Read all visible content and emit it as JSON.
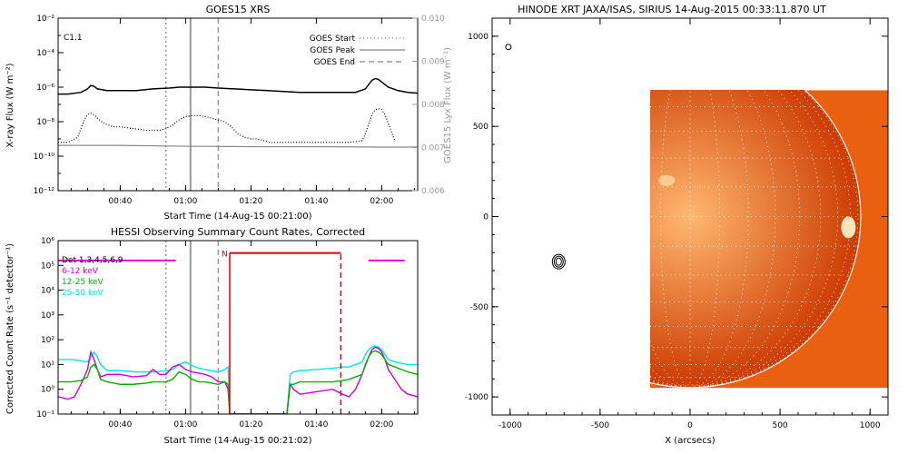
{
  "colors": {
    "goes_long": "#000000",
    "goes_short": "#000000",
    "goes_lya": "#888888",
    "goes_lines": "#999999",
    "hessi_det": "#e000e0",
    "hessi_6_12": "#d000d0",
    "hessi_12_25": "#00b000",
    "hessi_25_50": "#00e6e6",
    "hessi_flags": "#dd0000",
    "sun_core": "#ffb870",
    "sun_edge": "#cc3a00",
    "sun_bg": "#e86010"
  },
  "chart_data": [
    {
      "type": "line",
      "title": "GOES15 XRS",
      "xlabel": "Start Time (14-Aug-15 00:21:00)",
      "ylabel": "X-ray Flux (W m⁻²)",
      "ylabel_right": "GOES15 Lyx Flux (W m⁻²)",
      "x_tick_labels": [
        "00:40",
        "01:00",
        "01:20",
        "01:40",
        "02:00"
      ],
      "x_tick_minutes": [
        40,
        60,
        80,
        100,
        120
      ],
      "xlim_minutes": [
        21,
        131
      ],
      "y_tick_labels": [
        "10⁻¹²",
        "10⁻¹⁰",
        "10⁻⁸",
        "10⁻⁶",
        "10⁻⁴",
        "10⁻²"
      ],
      "y_tick_exponents": [
        -12,
        -10,
        -8,
        -6,
        -4,
        -2
      ],
      "ylim_log": [
        -12,
        -2
      ],
      "y2_tick_labels": [
        "0.006",
        "0.007",
        "0.008",
        "0.009",
        "0.010"
      ],
      "y2lim": [
        0.006,
        0.01
      ],
      "class_label": "C1.1",
      "legend": [
        {
          "label": "GOES Start",
          "style": "dotted"
        },
        {
          "label": "GOES Peak",
          "style": "solid"
        },
        {
          "label": "GOES End",
          "style": "dashed"
        }
      ],
      "goes_start_min": 54,
      "goes_peak_min": 61.5,
      "goes_end_min": 70,
      "series": [
        {
          "style": "long",
          "x": [
            21,
            24,
            28,
            30,
            31,
            32,
            33,
            36,
            40,
            45,
            50,
            55,
            58,
            60,
            62,
            64,
            66,
            70,
            75,
            80,
            85,
            90,
            95,
            100,
            105,
            110,
            112,
            115,
            117,
            118,
            119,
            120,
            122,
            125,
            128,
            131
          ],
          "y": [
            -6.4,
            -6.4,
            -6.3,
            -6.1,
            -5.9,
            -5.95,
            -6.1,
            -6.2,
            -6.2,
            -6.2,
            -6.1,
            -6.05,
            -6.0,
            -6.0,
            -6.0,
            -6.0,
            -6.0,
            -6.05,
            -6.1,
            -6.15,
            -6.2,
            -6.25,
            -6.3,
            -6.3,
            -6.3,
            -6.3,
            -6.3,
            -6.1,
            -5.6,
            -5.5,
            -5.55,
            -5.7,
            -6.0,
            -6.2,
            -6.3,
            -6.35
          ]
        },
        {
          "style": "short",
          "x": [
            21,
            24,
            27,
            29,
            30,
            31,
            32,
            33,
            35,
            38,
            40,
            44,
            48,
            50,
            52,
            54,
            56,
            58,
            60,
            62,
            64,
            66,
            68,
            70,
            72,
            74,
            76,
            78,
            80,
            82,
            84,
            86,
            88,
            110,
            114,
            115,
            117,
            118,
            119,
            120,
            121,
            122,
            123,
            124
          ],
          "y": [
            -9.2,
            -9.2,
            -8.9,
            -7.9,
            -7.6,
            -7.5,
            -7.6,
            -7.8,
            -8.1,
            -8.3,
            -8.3,
            -8.4,
            -8.5,
            -8.5,
            -8.5,
            -8.4,
            -8.2,
            -7.9,
            -7.7,
            -7.65,
            -7.65,
            -7.7,
            -7.8,
            -7.9,
            -8.0,
            -8.3,
            -8.7,
            -8.9,
            -9.0,
            -9.0,
            -9.1,
            -9.2,
            -9.2,
            -9.2,
            -9.1,
            -8.7,
            -7.6,
            -7.3,
            -7.25,
            -7.3,
            -7.6,
            -8.1,
            -8.6,
            -9.1
          ]
        },
        {
          "style": "lya",
          "x": [
            21,
            40,
            60,
            80,
            100,
            120,
            131
          ],
          "y": [
            0.00705,
            0.00705,
            0.00703,
            0.00702,
            0.00702,
            0.00701,
            0.00701
          ]
        }
      ]
    },
    {
      "type": "line",
      "title": "HESSI Observing Summary Count Rates, Corrected",
      "xlabel": "Start Time (14-Aug-15 00:21:02)",
      "ylabel": "Corrected Count Rate (s⁻¹ detector⁻¹)",
      "x_tick_labels": [
        "00:40",
        "01:00",
        "01:20",
        "01:40",
        "02:00"
      ],
      "x_tick_minutes": [
        40,
        60,
        80,
        100,
        120
      ],
      "xlim_minutes": [
        21,
        131
      ],
      "y_tick_labels": [
        "10⁻¹",
        "10⁰",
        "10¹",
        "10²",
        "10³",
        "10⁴",
        "10⁵",
        "10⁶"
      ],
      "y_tick_exponents": [
        -1,
        0,
        1,
        2,
        3,
        4,
        5,
        6
      ],
      "ylim_log": [
        -1,
        6
      ],
      "legend": [
        {
          "label": "Det 1,3,4,5,6,9",
          "color_key": "hessi_det"
        },
        {
          "label": "6-12 keV",
          "color_key": "hessi_6_12"
        },
        {
          "label": "12-25 keV",
          "color_key": "hessi_12_25"
        },
        {
          "label": "25-50 keV",
          "color_key": "hessi_25_50"
        }
      ],
      "night_flag": "N",
      "night_start_min": 73.5,
      "night_end_min": 107.5,
      "goes_start_min": 54,
      "goes_peak_min": 61.5,
      "goes_end_min": 70,
      "series": [
        {
          "color_key": "hessi_25_50",
          "x": [
            21,
            25,
            28,
            30,
            31,
            32,
            33,
            34,
            36,
            40,
            45,
            50,
            52,
            54,
            56,
            58,
            60,
            62,
            64,
            66,
            68,
            70,
            72,
            73,
            73.5,
            88,
            91,
            92,
            93,
            95,
            100,
            105,
            108,
            110,
            112,
            114,
            115,
            116,
            117,
            118,
            119,
            120,
            121,
            122,
            124,
            126,
            128,
            131
          ],
          "y": [
            1.2,
            1.2,
            1.15,
            1.1,
            1.3,
            1.5,
            1.3,
            1.0,
            0.75,
            0.75,
            0.7,
            0.7,
            0.72,
            0.75,
            0.8,
            1.0,
            1.1,
            0.95,
            0.85,
            0.8,
            0.75,
            0.7,
            0.8,
            0.9,
            -1,
            -1,
            -1,
            0.6,
            0.7,
            0.75,
            0.8,
            0.85,
            0.9,
            0.9,
            1.0,
            1.1,
            1.4,
            1.6,
            1.7,
            1.75,
            1.7,
            1.6,
            1.4,
            1.2,
            1.1,
            1.05,
            1.0,
            1.0
          ]
        },
        {
          "color_key": "hessi_6_12",
          "x": [
            21,
            24,
            26,
            28,
            30,
            31,
            32,
            33,
            34,
            36,
            40,
            44,
            48,
            50,
            52,
            54,
            56,
            58,
            60,
            62,
            64,
            66,
            68,
            70,
            72,
            73,
            73.5,
            88,
            91,
            92,
            93,
            95,
            100,
            105,
            108,
            110,
            112,
            114,
            116,
            117,
            118,
            119,
            120,
            121,
            122,
            124,
            126,
            128,
            131
          ],
          "y": [
            -0.3,
            -0.4,
            -0.3,
            0.2,
            0.8,
            1.5,
            1.2,
            0.8,
            0.5,
            0.6,
            0.6,
            0.5,
            0.55,
            0.8,
            0.6,
            0.6,
            0.9,
            1.0,
            0.8,
            0.7,
            0.65,
            0.6,
            0.5,
            0.3,
            0.3,
            0.0,
            -1,
            -1,
            -1,
            0.2,
            0.0,
            -0.2,
            -0.1,
            0.0,
            -0.2,
            -0.3,
            0.0,
            0.6,
            1.3,
            1.6,
            1.7,
            1.65,
            1.5,
            1.2,
            0.8,
            0.4,
            0.0,
            -0.2,
            -0.3
          ]
        },
        {
          "color_key": "hessi_12_25",
          "x": [
            21,
            25,
            28,
            30,
            31,
            32,
            33,
            34,
            36,
            40,
            44,
            48,
            50,
            52,
            54,
            56,
            58,
            60,
            62,
            64,
            66,
            68,
            70,
            72,
            73,
            73.5,
            88,
            91,
            92,
            93,
            95,
            100,
            105,
            108,
            110,
            112,
            114,
            115,
            116,
            117,
            118,
            119,
            120,
            121,
            122,
            124,
            126,
            128,
            131
          ],
          "y": [
            0.3,
            0.3,
            0.35,
            0.5,
            0.9,
            1.0,
            0.8,
            0.4,
            0.3,
            0.2,
            0.2,
            0.25,
            0.3,
            0.3,
            0.3,
            0.4,
            0.7,
            0.6,
            0.4,
            0.3,
            0.3,
            0.25,
            0.2,
            0.3,
            0.2,
            -1,
            -1,
            -1,
            0.2,
            0.2,
            0.3,
            0.3,
            0.3,
            0.35,
            0.4,
            0.5,
            0.6,
            1.0,
            1.3,
            1.5,
            1.55,
            1.5,
            1.4,
            1.2,
            1.0,
            0.9,
            0.8,
            0.7,
            0.6
          ]
        }
      ],
      "det_flag_segments": [
        [
          21,
          57
        ],
        [
          116,
          127
        ]
      ]
    },
    {
      "type": "heatmap",
      "title": "HINODE XRT JAXA/ISAS, SIRIUS 14-Aug-2015 00:33:11.870 UT",
      "xlabel": "X (arcsecs)",
      "ylabel": "",
      "x_tick_labels": [
        "-1000",
        "-500",
        "0",
        "500",
        "1000"
      ],
      "x_tick_values": [
        -1000,
        -500,
        0,
        500,
        1000
      ],
      "xlim": [
        -1100,
        1100
      ],
      "y_tick_labels": [
        "-1000",
        "-500",
        "0",
        "500",
        "1000"
      ],
      "y_tick_values": [
        -1000,
        -500,
        0,
        500,
        1000
      ],
      "ylim": [
        -1100,
        1100
      ],
      "image_extent_x": [
        -230,
        1100
      ],
      "image_extent_y": [
        -950,
        700
      ],
      "limb_radius_arcsec": 948,
      "grid_spacing_deg": 10,
      "contour_center": [
        -730,
        -250
      ],
      "small_marker": [
        -1010,
        940
      ]
    }
  ]
}
